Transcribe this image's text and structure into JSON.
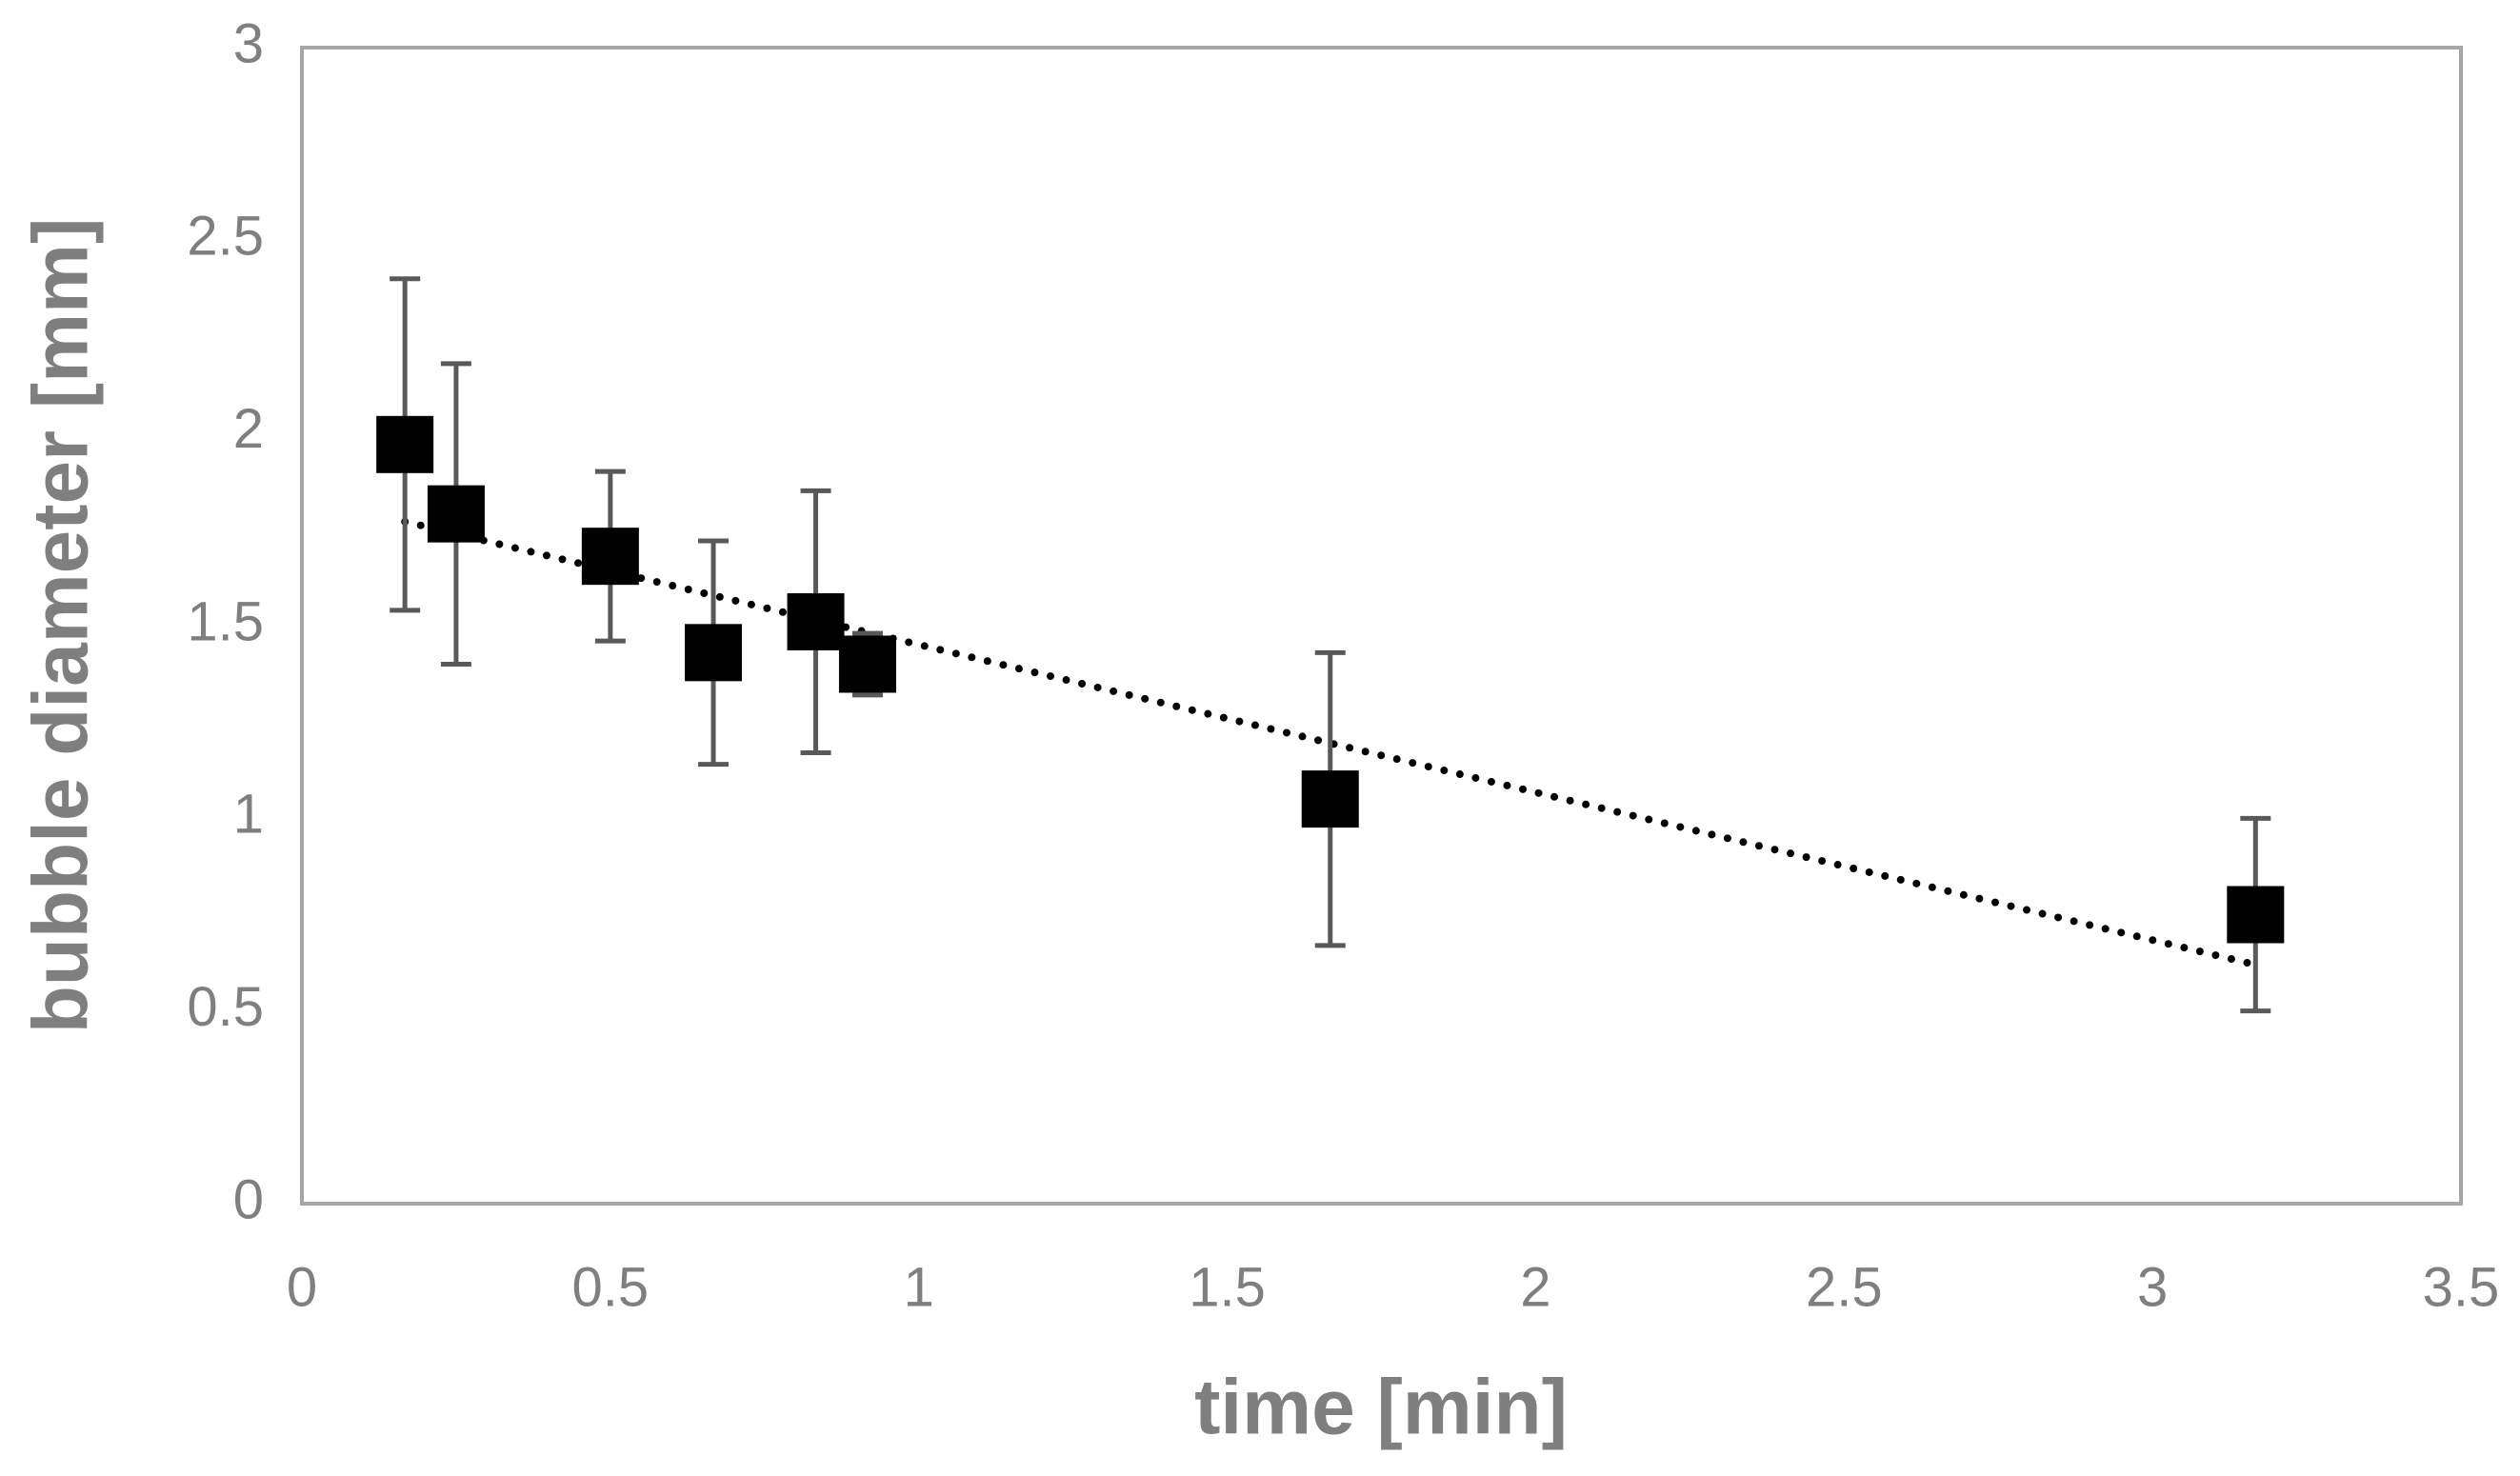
{
  "chart_data": {
    "type": "scatter",
    "xlabel": "time [min]",
    "ylabel": "bubble diameter [mm]",
    "xlim": [
      0,
      3.5
    ],
    "xticks": [
      0,
      0.5,
      1,
      1.5,
      2,
      2.5,
      3,
      3.5
    ],
    "ylim": [
      0,
      3
    ],
    "yticks": [
      0,
      0.5,
      1,
      1.5,
      2,
      2.5,
      3
    ],
    "grid": false,
    "series": [
      {
        "color": "#000000",
        "x": [
          0.167,
          0.25,
          0.5,
          0.667,
          0.833,
          0.917,
          1.667,
          3.167
        ],
        "values": [
          1.97,
          1.79,
          1.68,
          1.43,
          1.51,
          1.4,
          1.05,
          0.75
        ],
        "errors": [
          0.43,
          0.39,
          0.22,
          0.29,
          0.34,
          0.08,
          0.38,
          0.25
        ]
      }
    ],
    "trendline": {
      "color": "#000000",
      "x": [
        0.167,
        3.167
      ],
      "y": [
        1.77,
        0.62
      ]
    }
  }
}
